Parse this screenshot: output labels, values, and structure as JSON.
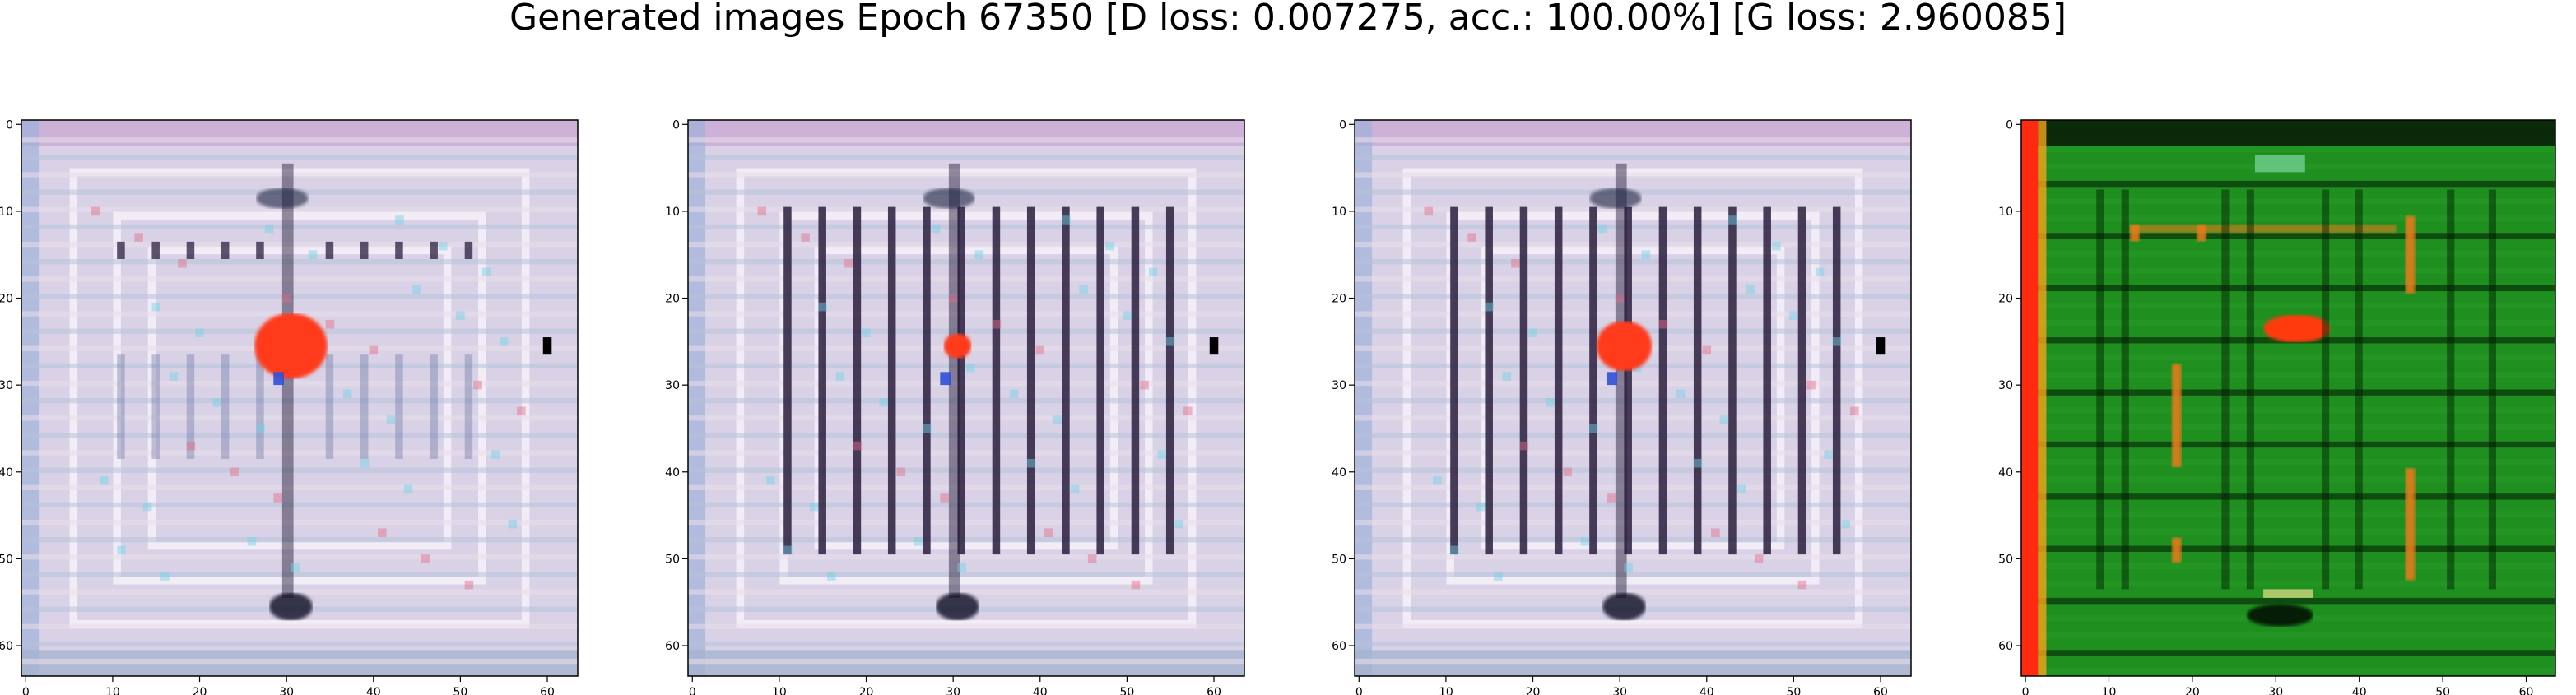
{
  "figure": {
    "title": "Generated images Epoch 67350 [D loss: 0.007275, acc.: 100.00%] [G loss: 2.960085]"
  },
  "axes": {
    "x_ticks": [
      "0",
      "10",
      "20",
      "30",
      "40",
      "50",
      "60"
    ],
    "y_ticks": [
      "0",
      "10",
      "20",
      "30",
      "40",
      "50",
      "60"
    ],
    "image_size": 64
  },
  "panels": [
    {
      "name": "generated-image-1",
      "palette": "lavender",
      "stripes": "sparse",
      "blob": "large"
    },
    {
      "name": "generated-image-2",
      "palette": "lavender",
      "stripes": "dense",
      "blob": "small"
    },
    {
      "name": "generated-image-3",
      "palette": "lavender",
      "stripes": "dense",
      "blob": "medium"
    },
    {
      "name": "generated-image-4",
      "palette": "green",
      "stripes": "orange",
      "blob": "orange"
    }
  ],
  "colors": {
    "lavender_base": "#d9d2e6",
    "dark_stripe": "#2a1f3d",
    "red_blob": "#ff3a1a",
    "green_base": "#1f8f1f",
    "orange_mark": "#e87a1a"
  }
}
